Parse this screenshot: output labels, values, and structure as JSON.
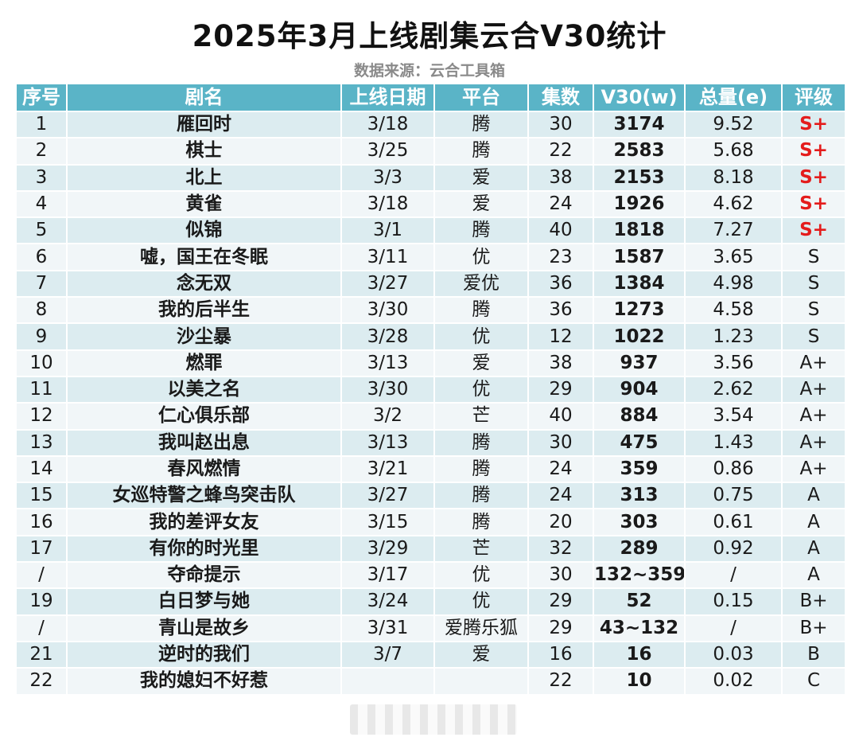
{
  "title": "2025年3月上线剧集云合V30统计",
  "subtitle": "数据来源：云合工具箱",
  "colors": {
    "header_bg": "#5ab4c7",
    "row_odd": "#dcecf0",
    "row_even": "#f1f6f8",
    "top_grade": "#e41c1c"
  },
  "table": {
    "headers": [
      "序号",
      "剧名",
      "上线日期",
      "平台",
      "集数",
      "V30(w)",
      "总量(e)",
      "评级"
    ],
    "rows": [
      {
        "rank": "1",
        "name": "雁回时",
        "date": "3/18",
        "platform": "腾",
        "episodes": "30",
        "v30": "3174",
        "total": "9.52",
        "grade": "S+"
      },
      {
        "rank": "2",
        "name": "棋士",
        "date": "3/25",
        "platform": "腾",
        "episodes": "22",
        "v30": "2583",
        "total": "5.68",
        "grade": "S+"
      },
      {
        "rank": "3",
        "name": "北上",
        "date": "3/3",
        "platform": "爱",
        "episodes": "38",
        "v30": "2153",
        "total": "8.18",
        "grade": "S+"
      },
      {
        "rank": "4",
        "name": "黄雀",
        "date": "3/18",
        "platform": "爱",
        "episodes": "24",
        "v30": "1926",
        "total": "4.62",
        "grade": "S+"
      },
      {
        "rank": "5",
        "name": "似锦",
        "date": "3/1",
        "platform": "腾",
        "episodes": "40",
        "v30": "1818",
        "total": "7.27",
        "grade": "S+"
      },
      {
        "rank": "6",
        "name": "嘘，国王在冬眠",
        "date": "3/11",
        "platform": "优",
        "episodes": "23",
        "v30": "1587",
        "total": "3.65",
        "grade": "S"
      },
      {
        "rank": "7",
        "name": "念无双",
        "date": "3/27",
        "platform": "爱优",
        "episodes": "36",
        "v30": "1384",
        "total": "4.98",
        "grade": "S"
      },
      {
        "rank": "8",
        "name": "我的后半生",
        "date": "3/30",
        "platform": "腾",
        "episodes": "36",
        "v30": "1273",
        "total": "4.58",
        "grade": "S"
      },
      {
        "rank": "9",
        "name": "沙尘暴",
        "date": "3/28",
        "platform": "优",
        "episodes": "12",
        "v30": "1022",
        "total": "1.23",
        "grade": "S"
      },
      {
        "rank": "10",
        "name": "燃罪",
        "date": "3/13",
        "platform": "爱",
        "episodes": "38",
        "v30": "937",
        "total": "3.56",
        "grade": "A+"
      },
      {
        "rank": "11",
        "name": "以美之名",
        "date": "3/30",
        "platform": "优",
        "episodes": "29",
        "v30": "904",
        "total": "2.62",
        "grade": "A+"
      },
      {
        "rank": "12",
        "name": "仁心俱乐部",
        "date": "3/2",
        "platform": "芒",
        "episodes": "40",
        "v30": "884",
        "total": "3.54",
        "grade": "A+"
      },
      {
        "rank": "13",
        "name": "我叫赵出息",
        "date": "3/13",
        "platform": "腾",
        "episodes": "30",
        "v30": "475",
        "total": "1.43",
        "grade": "A+"
      },
      {
        "rank": "14",
        "name": "春风燃情",
        "date": "3/21",
        "platform": "腾",
        "episodes": "24",
        "v30": "359",
        "total": "0.86",
        "grade": "A+"
      },
      {
        "rank": "15",
        "name": "女巡特警之蜂鸟突击队",
        "date": "3/27",
        "platform": "腾",
        "episodes": "24",
        "v30": "313",
        "total": "0.75",
        "grade": "A"
      },
      {
        "rank": "16",
        "name": "我的差评女友",
        "date": "3/15",
        "platform": "腾",
        "episodes": "20",
        "v30": "303",
        "total": "0.61",
        "grade": "A"
      },
      {
        "rank": "17",
        "name": "有你的时光里",
        "date": "3/29",
        "platform": "芒",
        "episodes": "32",
        "v30": "289",
        "total": "0.92",
        "grade": "A"
      },
      {
        "rank": "/",
        "name": "夺命提示",
        "date": "3/17",
        "platform": "优",
        "episodes": "30",
        "v30": "132~359",
        "total": "/",
        "grade": "A"
      },
      {
        "rank": "19",
        "name": "白日梦与她",
        "date": "3/24",
        "platform": "优",
        "episodes": "29",
        "v30": "52",
        "total": "0.15",
        "grade": "B+"
      },
      {
        "rank": "/",
        "name": "青山是故乡",
        "date": "3/31",
        "platform": "爱腾乐狐",
        "episodes": "29",
        "v30": "43~132",
        "total": "/",
        "grade": "B+"
      },
      {
        "rank": "21",
        "name": "逆时的我们",
        "date": "3/7",
        "platform": "爱",
        "episodes": "16",
        "v30": "16",
        "total": "0.03",
        "grade": "B"
      },
      {
        "rank": "22",
        "name": "我的媳妇不好惹",
        "date": "",
        "platform": "",
        "episodes": "22",
        "v30": "10",
        "total": "0.02",
        "grade": "C"
      }
    ]
  }
}
